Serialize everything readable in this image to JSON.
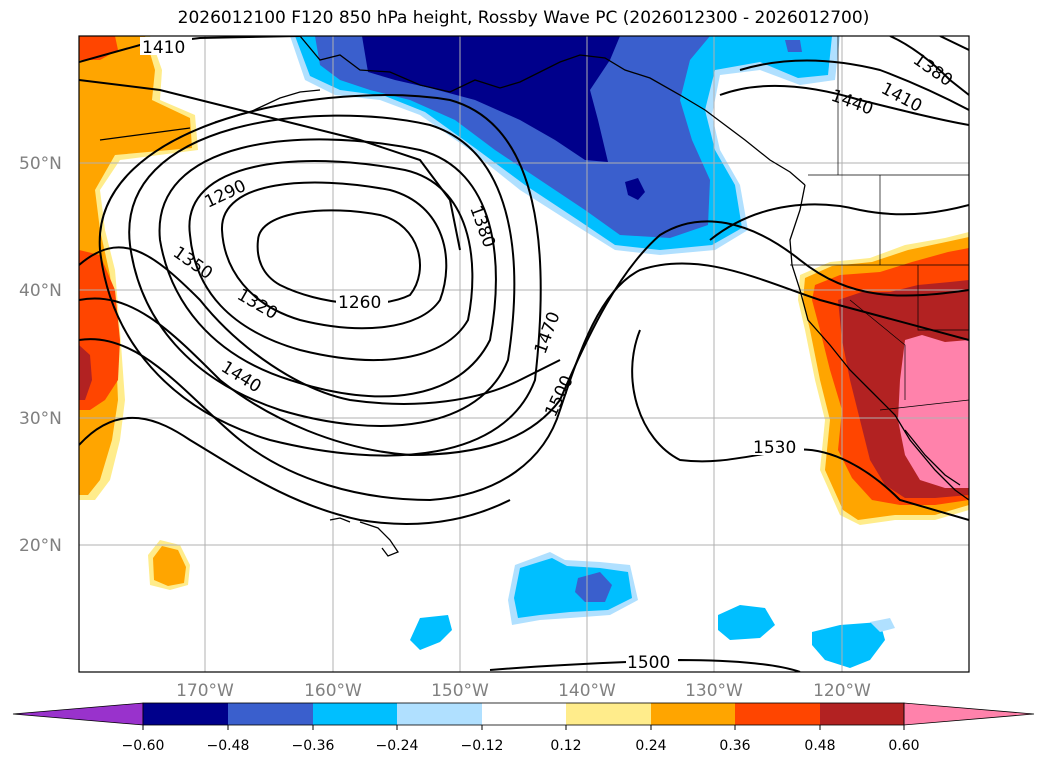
{
  "title": "2026012100 F120 850 hPa height, Rossby Wave PC (2026012300 - 2026012700)",
  "latitude_labels": [
    "50°N",
    "40°N",
    "30°N",
    "20°N"
  ],
  "longitude_labels": [
    "170°W",
    "160°W",
    "150°W",
    "140°W",
    "130°W",
    "120°W"
  ],
  "contour_labels": [
    "1410",
    "1290",
    "1350",
    "1320",
    "1260",
    "1380",
    "1440",
    "1470",
    "1500",
    "1530",
    "1500",
    "1440",
    "1410",
    "1380"
  ],
  "colorbar": {
    "tick_labels": [
      "−0.60",
      "−0.48",
      "−0.36",
      "−0.24",
      "−0.12",
      "0.12",
      "0.24",
      "0.36",
      "0.48",
      "0.60"
    ],
    "colors": [
      "#9932cc",
      "#00008b",
      "#3a5fcd",
      "#00bfff",
      "#b0e0ff",
      "#ffffff",
      "#ffec8b",
      "#ffa500",
      "#ff4500",
      "#b22222",
      "#ff82ab"
    ]
  },
  "colors": {
    "strong_negative": "#00008b",
    "negative": "#3a5fcd",
    "moderate_negative": "#00bfff",
    "weak_negative": "#b0e0ff",
    "weak_positive": "#ffec8b",
    "moderate_positive": "#ffa500",
    "positive": "#ff4500",
    "strong_positive": "#b22222",
    "extreme_positive": "#ff82ab"
  }
}
